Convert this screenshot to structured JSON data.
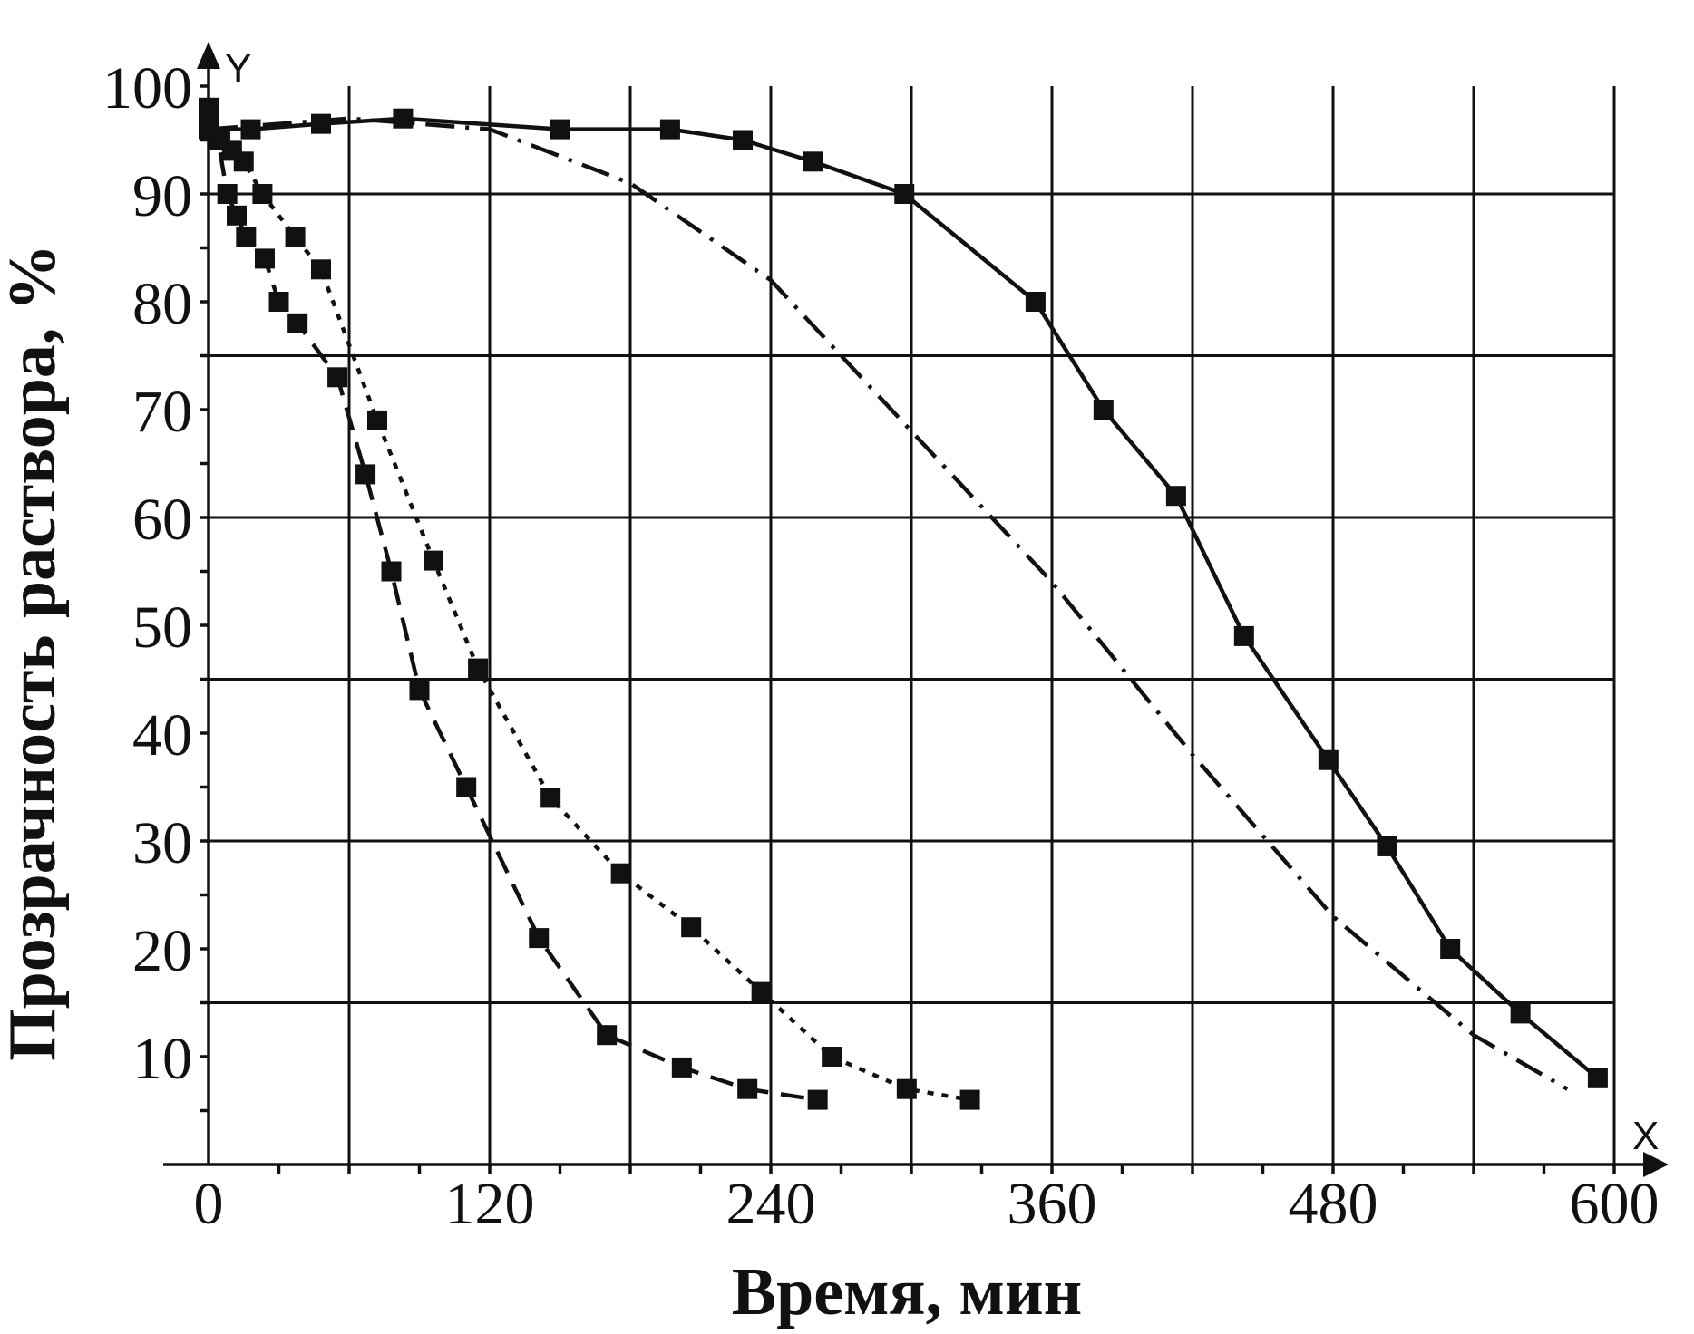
{
  "chart_data": {
    "type": "line",
    "xlabel": "Время, мин",
    "ylabel": "Прозрачность раствора, %",
    "x_axis_letter": "X",
    "y_axis_letter": "Y",
    "xlim": [
      0,
      600
    ],
    "ylim": [
      0,
      100
    ],
    "xticks": [
      0,
      120,
      240,
      360,
      480,
      600
    ],
    "yticks": [
      10,
      20,
      30,
      40,
      50,
      60,
      70,
      80,
      90,
      100
    ],
    "grid": true,
    "series": [
      {
        "style": "solid",
        "markers": true,
        "x": [
          0,
          18,
          48,
          83,
          150,
          197,
          228,
          258,
          297,
          353,
          382,
          413,
          442,
          478,
          503,
          530,
          560,
          593
        ],
        "y": [
          96,
          96,
          96.5,
          97,
          96,
          96,
          95,
          93,
          90,
          80,
          70,
          62,
          49,
          37.5,
          29.5,
          20,
          14,
          8
        ]
      },
      {
        "style": "dash-dot",
        "markers": false,
        "x": [
          0,
          60,
          120,
          180,
          240,
          300,
          360,
          420,
          480,
          540,
          580
        ],
        "y": [
          96,
          97,
          96,
          91,
          82,
          68,
          54,
          38,
          23,
          12,
          7
        ]
      },
      {
        "style": "dotted",
        "markers": true,
        "x": [
          0,
          5,
          10,
          15,
          23,
          37,
          48,
          72,
          96,
          115,
          146,
          176,
          206,
          236,
          266,
          298,
          325
        ],
        "y": [
          98,
          95,
          94,
          93,
          90,
          86,
          83,
          69,
          56,
          46,
          34,
          27,
          22,
          16,
          10,
          7,
          6
        ]
      },
      {
        "style": "dashed",
        "markers": true,
        "x": [
          0,
          4,
          8,
          12,
          16,
          24,
          30,
          38,
          55,
          67,
          78,
          90,
          110,
          141,
          170,
          202,
          230,
          260
        ],
        "y": [
          97,
          95,
          90,
          88,
          86,
          84,
          80,
          78,
          73,
          64,
          55,
          44,
          35,
          21,
          12,
          9,
          7,
          6
        ]
      }
    ]
  }
}
